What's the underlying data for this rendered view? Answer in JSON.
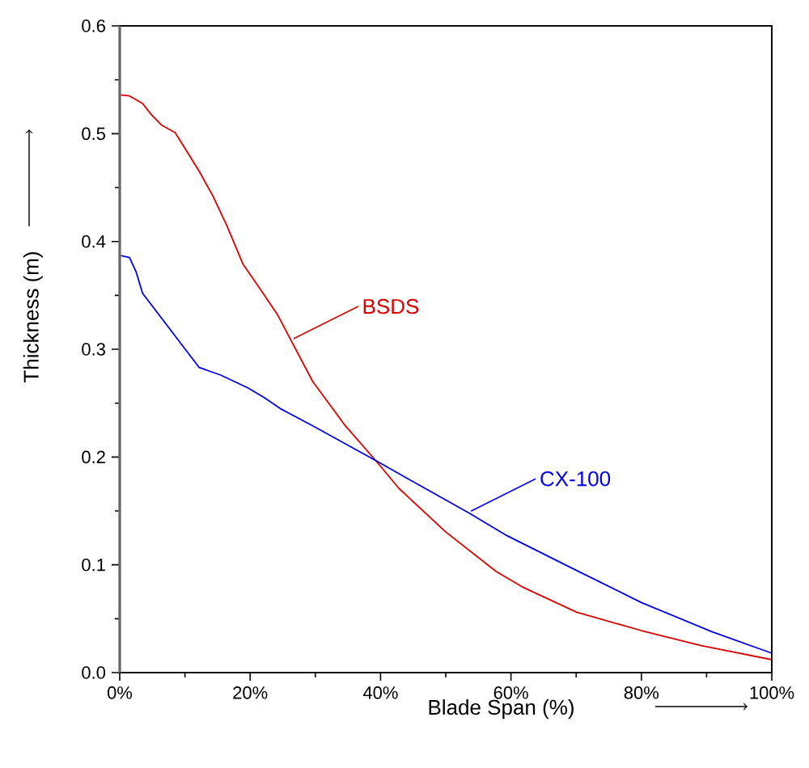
{
  "chart_data": {
    "type": "line",
    "xlabel": "Blade Span (%)",
    "ylabel": "Thickness (m)",
    "xlim": [
      0,
      100
    ],
    "ylim": [
      0,
      0.6
    ],
    "xticks": [
      {
        "value": 0,
        "label": "0%"
      },
      {
        "value": 20,
        "label": "20%"
      },
      {
        "value": 40,
        "label": "40%"
      },
      {
        "value": 60,
        "label": "60%"
      },
      {
        "value": 80,
        "label": "80%"
      },
      {
        "value": 100,
        "label": "100%"
      }
    ],
    "yticks": [
      {
        "value": 0,
        "label": "0.0"
      },
      {
        "value": 0.1,
        "label": "0.1"
      },
      {
        "value": 0.2,
        "label": "0.2"
      },
      {
        "value": 0.3,
        "label": "0.3"
      },
      {
        "value": 0.4,
        "label": "0.4"
      },
      {
        "value": 0.5,
        "label": "0.5"
      },
      {
        "value": 0.6,
        "label": "0.6"
      }
    ],
    "grid": false,
    "legend": false,
    "marker": "none",
    "line_style": "solid",
    "series": [
      {
        "name": "BSDS",
        "color": "#dd0000",
        "x": [
          0.1,
          1.5,
          3.5,
          4.8,
          6.4,
          8.5,
          12.2,
          14.3,
          16.4,
          18.9,
          21.3,
          24.2,
          29.6,
          34.6,
          39.5,
          42.8,
          49.9,
          57.7,
          61.9,
          70.1,
          80.0,
          89.2,
          100
        ],
        "values": [
          0.536,
          0.535,
          0.528,
          0.518,
          0.508,
          0.501,
          0.465,
          0.442,
          0.415,
          0.379,
          0.358,
          0.332,
          0.27,
          0.229,
          0.195,
          0.171,
          0.131,
          0.094,
          0.079,
          0.056,
          0.039,
          0.025,
          0.012
        ]
      },
      {
        "name": "CX-100",
        "color": "#0000ee",
        "x": [
          0.2,
          1.5,
          2.5,
          3.5,
          12.2,
          15.5,
          19.7,
          22.2,
          24.6,
          29.6,
          39.5,
          46.2,
          53.6,
          59.4,
          69.3,
          80.0,
          90.8,
          100
        ],
        "values": [
          0.387,
          0.385,
          0.372,
          0.352,
          0.283,
          0.276,
          0.264,
          0.255,
          0.245,
          0.229,
          0.196,
          0.173,
          0.148,
          0.127,
          0.097,
          0.065,
          0.038,
          0.018
        ]
      }
    ]
  }
}
